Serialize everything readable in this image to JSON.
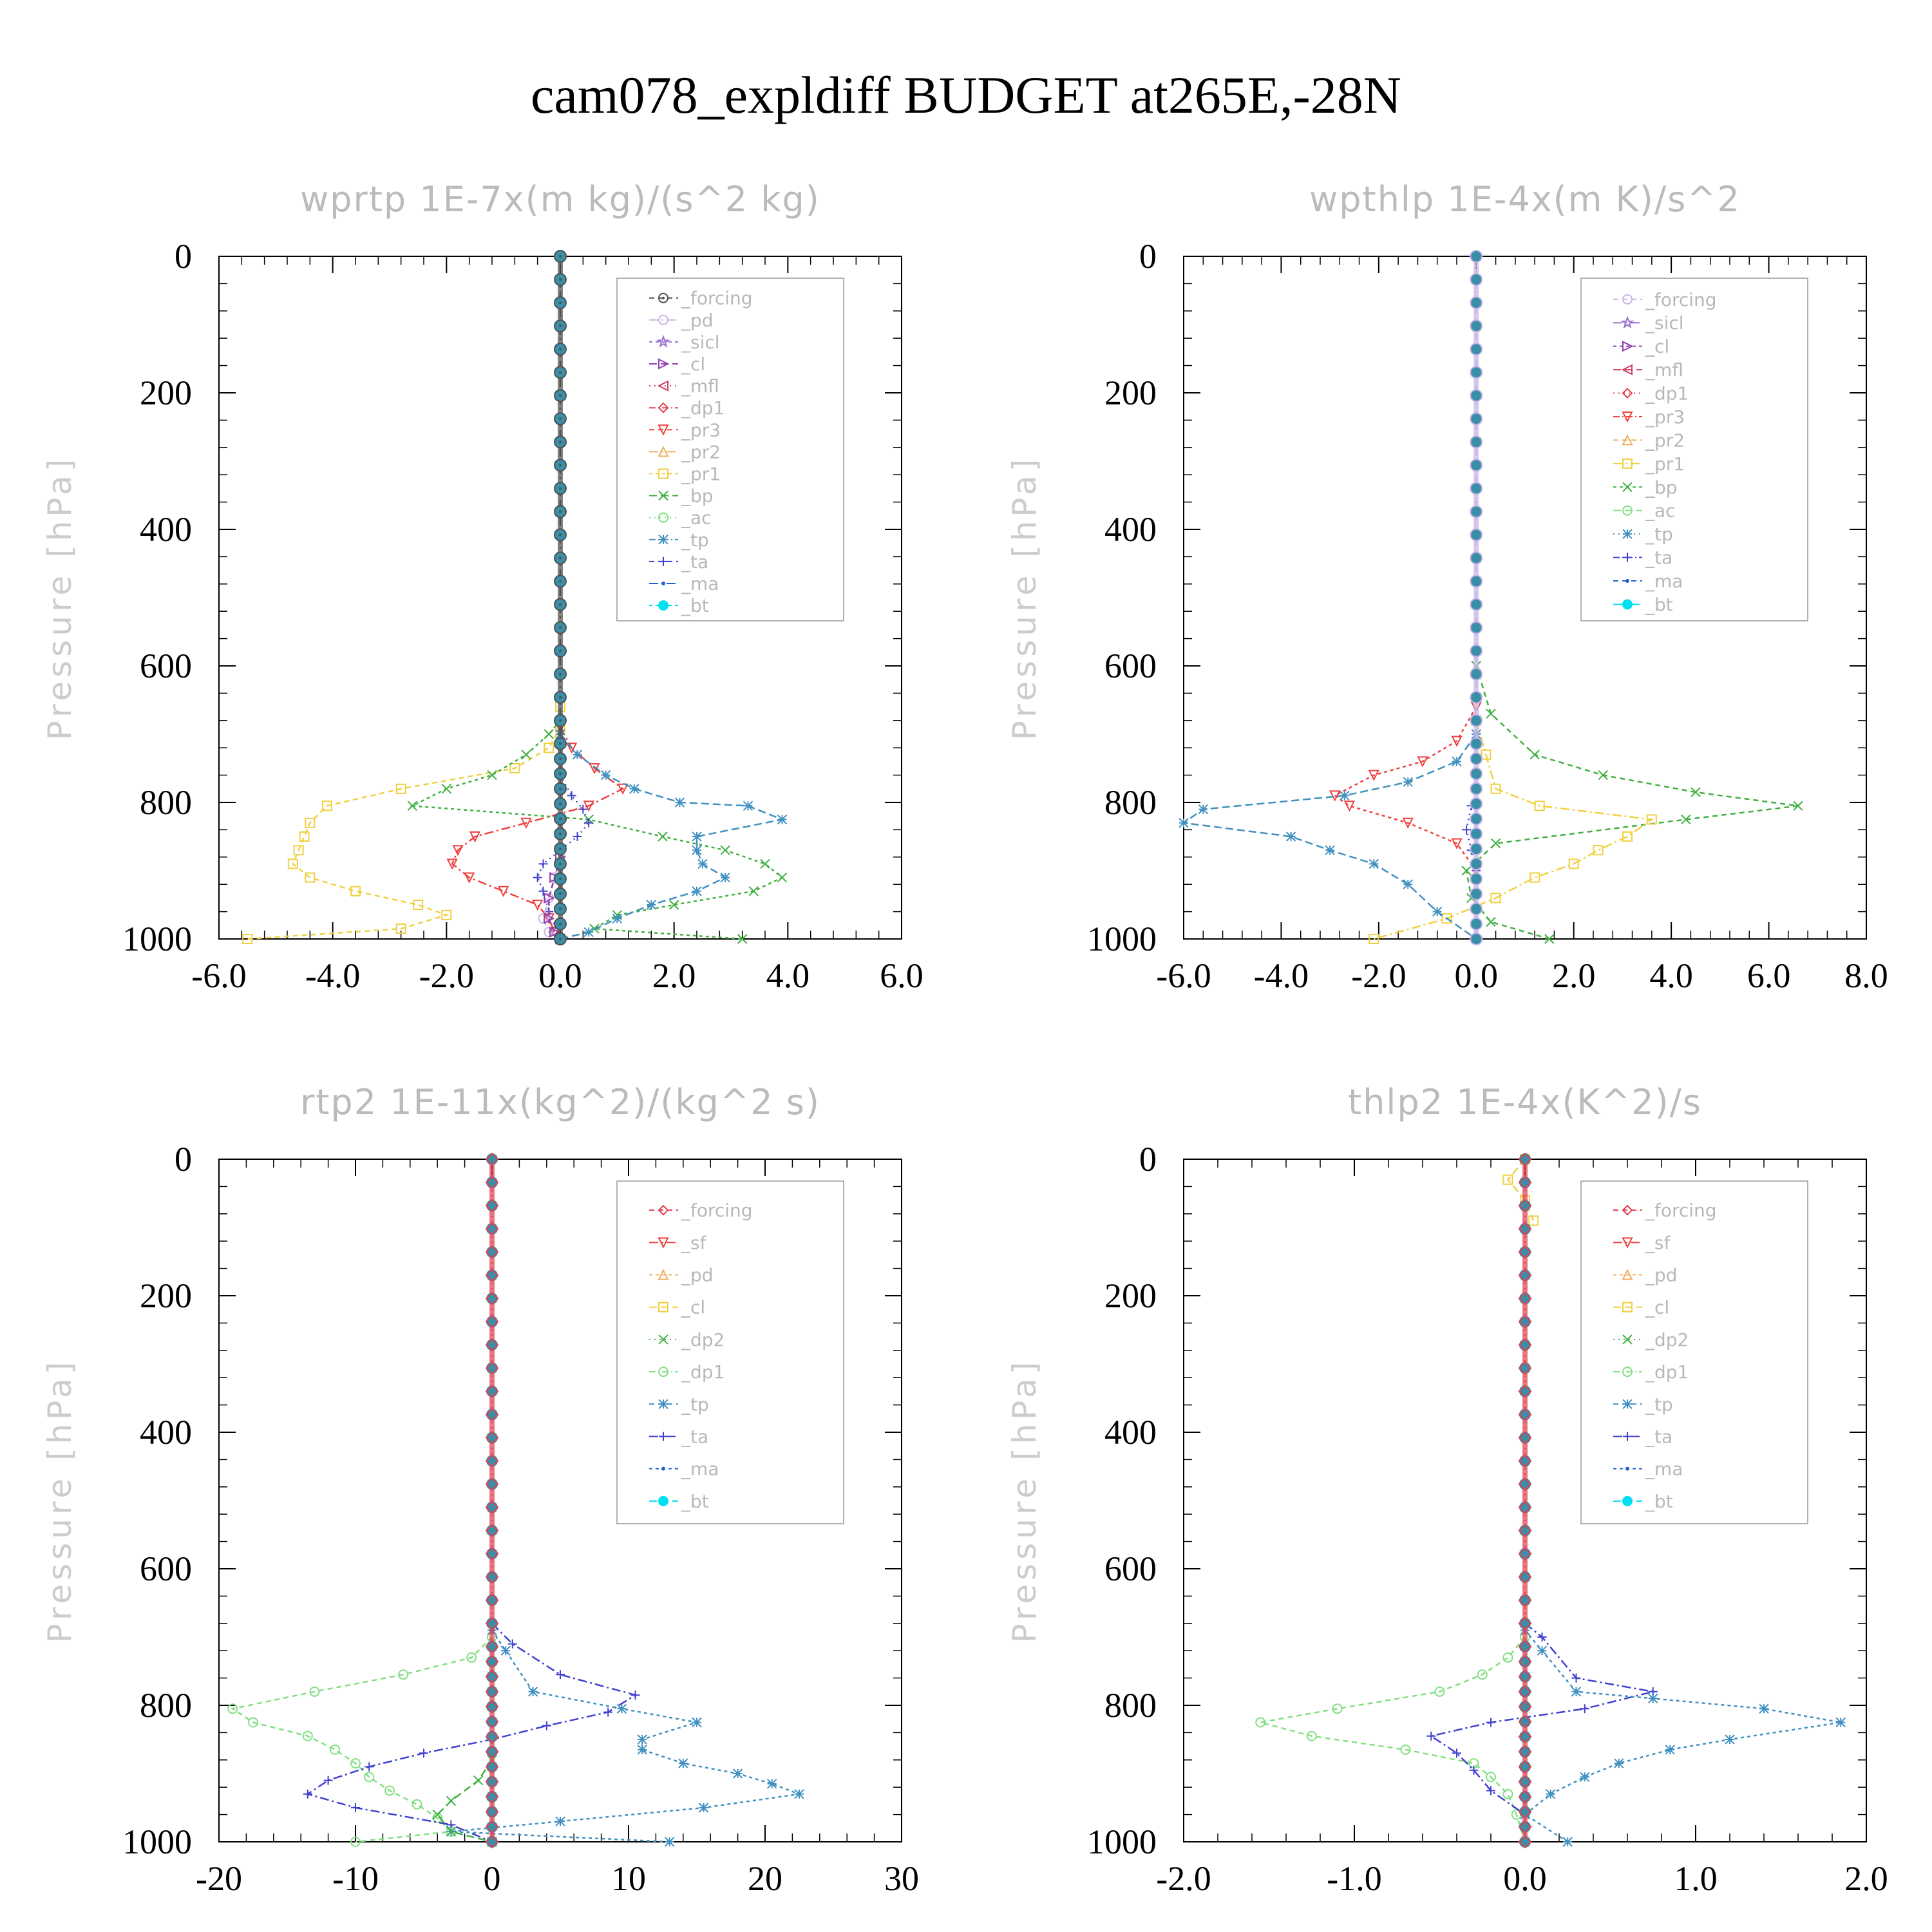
{
  "title": "cam078_expldiff  BUDGET at265E,-28N",
  "colors": {
    "forcing_dark": "#505050",
    "pd": "#c8b4e6",
    "sicl": "#9a6fd0",
    "cl_purple": "#9040b0",
    "mfl": "#d04060",
    "dp1_red": "#e04050",
    "pr3": "#f04040",
    "pr2": "#f0b060",
    "pr1": "#f0d040",
    "bp": "#40b040",
    "ac": "#80e080",
    "tp": "#4090c0",
    "ta": "#4040d0",
    "ma": "#2060d0",
    "bt": "#00e0f0"
  },
  "chart_data": [
    {
      "type": "line",
      "title": "wprtp  1E-7x(m kg)/(s^2 kg)",
      "ylabel": "Pressure [hPa]",
      "xlim": [
        -6,
        6
      ],
      "ylim": [
        1000,
        0
      ],
      "xticks": [
        "-6.0",
        "-4.0",
        "-2.0",
        "0.0",
        "2.0",
        "4.0",
        "6.0"
      ],
      "yticks": [
        "0",
        "200",
        "400",
        "600",
        "800",
        "1000"
      ],
      "legend": [
        "_forcing",
        "_pd",
        "_sicl",
        "_cl",
        "_mfl",
        "_dp1",
        "_pr3",
        "_pr2",
        "_pr1",
        "_bp",
        "_ac",
        "_tp",
        "_ta",
        "_ma",
        "_bt"
      ],
      "legend_markers": [
        "circle-dot",
        "circle",
        "star",
        "tri-right",
        "tri-left",
        "diamond",
        "tri-down",
        "tri-up",
        "square",
        "x",
        "circle",
        "asterisk",
        "plus",
        "dot",
        "filled-circle"
      ],
      "legend_colors": [
        "#505050",
        "#c8b4e6",
        "#9a6fd0",
        "#9040b0",
        "#d04060",
        "#e04050",
        "#f04040",
        "#f0b060",
        "#f0d040",
        "#40b040",
        "#80e080",
        "#4090c0",
        "#4040d0",
        "#2060d0",
        "#00e0f0"
      ],
      "series": [
        {
          "color": "#f0d040",
          "marker": "square",
          "x": [
            0,
            0,
            -0.2,
            -0.8,
            -2.8,
            -4.1,
            -4.4,
            -4.5,
            -4.6,
            -4.7,
            -4.4,
            -3.6,
            -2.5,
            -2.0,
            -2.8,
            -5.5
          ],
          "y": [
            660,
            690,
            720,
            750,
            780,
            805,
            830,
            850,
            870,
            890,
            910,
            930,
            950,
            965,
            985,
            1000
          ]
        },
        {
          "color": "#f04040",
          "marker": "tri-down",
          "x": [
            0,
            0.2,
            0.6,
            1.1,
            0.5,
            -0.6,
            -1.5,
            -1.8,
            -1.9,
            -1.6,
            -1.0,
            -0.4,
            -0.2,
            -0.1,
            0
          ],
          "y": [
            690,
            720,
            750,
            780,
            805,
            830,
            850,
            870,
            890,
            910,
            930,
            950,
            970,
            990,
            1000
          ]
        },
        {
          "color": "#40b040",
          "marker": "x",
          "x": [
            0,
            -0.2,
            -0.6,
            -1.2,
            -2.0,
            -2.6,
            0.5,
            1.8,
            2.9,
            3.6,
            3.9,
            3.4,
            2.0,
            1.0,
            0.6,
            3.2
          ],
          "y": [
            680,
            700,
            730,
            760,
            780,
            805,
            825,
            850,
            870,
            890,
            910,
            930,
            950,
            965,
            985,
            1000
          ]
        },
        {
          "color": "#4090c0",
          "marker": "asterisk",
          "x": [
            0,
            0.3,
            0.8,
            1.3,
            2.1,
            3.3,
            3.9,
            2.4,
            2.4,
            2.5,
            2.9,
            2.4,
            1.6,
            1.0,
            0.5,
            0
          ],
          "y": [
            700,
            730,
            760,
            780,
            800,
            805,
            825,
            850,
            870,
            890,
            910,
            930,
            950,
            970,
            990,
            1000
          ]
        },
        {
          "color": "#4040d0",
          "marker": "plus",
          "x": [
            0,
            0.2,
            0.4,
            0.5,
            0.3,
            0,
            -0.3,
            -0.4,
            -0.3,
            -0.2,
            0
          ],
          "y": [
            760,
            790,
            810,
            830,
            850,
            870,
            890,
            910,
            930,
            960,
            1000
          ]
        },
        {
          "color": "#c8b4e6",
          "marker": "circle",
          "x": [
            0,
            -0.1,
            -0.2,
            -0.3,
            -0.2,
            0
          ],
          "y": [
            880,
            910,
            940,
            970,
            990,
            1000
          ]
        },
        {
          "color": "#9040b0",
          "marker": "tri-right",
          "x": [
            0,
            -0.1,
            -0.2,
            -0.2,
            -0.1,
            0
          ],
          "y": [
            880,
            910,
            940,
            970,
            990,
            1000
          ]
        },
        {
          "color": "#505050",
          "marker": "circle-dot",
          "x": [
            0,
            0
          ],
          "y": [
            0,
            1000
          ]
        }
      ]
    },
    {
      "type": "line",
      "title": "wpthlp  1E-4x(m K)/s^2",
      "ylabel": "Pressure [hPa]",
      "xlim": [
        -6,
        8
      ],
      "ylim": [
        1000,
        0
      ],
      "xticks": [
        "-6.0",
        "-4.0",
        "-2.0",
        "0.0",
        "2.0",
        "4.0",
        "6.0",
        "8.0"
      ],
      "yticks": [
        "0",
        "200",
        "400",
        "600",
        "800",
        "1000"
      ],
      "legend": [
        "_forcing",
        "_sicl",
        "_cl",
        "_mfl",
        "_dp1",
        "_pr3",
        "_pr2",
        "_pr1",
        "_bp",
        "_ac",
        "_tp",
        "_ta",
        "_ma",
        "_bt"
      ],
      "legend_markers": [
        "circle",
        "star",
        "tri-right",
        "tri-left",
        "diamond",
        "tri-down",
        "tri-up",
        "square",
        "x",
        "circle",
        "asterisk",
        "plus",
        "dot",
        "filled-circle"
      ],
      "legend_colors": [
        "#c8b4e6",
        "#9a6fd0",
        "#9040b0",
        "#d04060",
        "#e04050",
        "#f04040",
        "#f0b060",
        "#f0d040",
        "#40b040",
        "#80e080",
        "#4090c0",
        "#4040d0",
        "#2060d0",
        "#00e0f0"
      ],
      "series": [
        {
          "color": "#40b040",
          "marker": "x",
          "x": [
            0,
            0.3,
            1.2,
            2.6,
            4.5,
            6.6,
            4.3,
            0.4,
            -0.2,
            -0.1,
            0.3,
            1.5
          ],
          "y": [
            600,
            670,
            730,
            760,
            785,
            805,
            825,
            860,
            900,
            940,
            975,
            1000
          ]
        },
        {
          "color": "#f0d040",
          "marker": "square",
          "x": [
            0,
            0.2,
            0.4,
            1.3,
            3.6,
            3.1,
            2.5,
            2.0,
            1.2,
            0.4,
            -0.6,
            -2.1
          ],
          "y": [
            680,
            730,
            780,
            805,
            825,
            850,
            870,
            890,
            910,
            940,
            970,
            1000
          ]
        },
        {
          "color": "#f04040",
          "marker": "tri-down",
          "x": [
            0,
            -0.4,
            -1.1,
            -2.1,
            -2.9,
            -2.6,
            -1.4,
            -0.4,
            0
          ],
          "y": [
            660,
            710,
            740,
            760,
            790,
            805,
            830,
            860,
            900
          ]
        },
        {
          "color": "#4090c0",
          "marker": "asterisk",
          "x": [
            0,
            -0.4,
            -1.4,
            -2.7,
            -5.6,
            -6.0,
            -3.8,
            -3.0,
            -2.1,
            -1.4,
            -0.8,
            0
          ],
          "y": [
            700,
            740,
            770,
            790,
            810,
            830,
            850,
            870,
            890,
            920,
            960,
            1000
          ]
        },
        {
          "color": "#4040d0",
          "marker": "plus",
          "x": [
            0,
            -0.1,
            -0.2,
            -0.1,
            0
          ],
          "y": [
            780,
            805,
            840,
            870,
            900
          ]
        },
        {
          "color": "#c8b4e6",
          "marker": "circle",
          "x": [
            0,
            0
          ],
          "y": [
            0,
            1000
          ]
        }
      ]
    },
    {
      "type": "line",
      "title": "rtp2  1E-11x(kg^2)/(kg^2 s)",
      "ylabel": "Pressure [hPa]",
      "xlim": [
        -20,
        30
      ],
      "ylim": [
        1000,
        0
      ],
      "xticks": [
        "-20",
        "-10",
        "0",
        "10",
        "20",
        "30"
      ],
      "yticks": [
        "0",
        "200",
        "400",
        "600",
        "800",
        "1000"
      ],
      "legend": [
        "_forcing",
        "_sf",
        "_pd",
        "_cl",
        "_dp2",
        "_dp1",
        "_tp",
        "_ta",
        "_ma",
        "_bt"
      ],
      "legend_markers": [
        "diamond",
        "tri-down",
        "tri-up",
        "square",
        "x",
        "circle",
        "asterisk",
        "plus",
        "dot",
        "filled-circle"
      ],
      "legend_colors": [
        "#e04050",
        "#f04040",
        "#f0b060",
        "#f0d040",
        "#40b040",
        "#80e080",
        "#4090c0",
        "#4040d0",
        "#2060d0",
        "#00e0f0"
      ],
      "series": [
        {
          "color": "#80e080",
          "marker": "circle",
          "x": [
            0,
            -1.5,
            -6.5,
            -13,
            -19,
            -17.5,
            -13.5,
            -11.5,
            -10,
            -9,
            -7.5,
            -5.5,
            -4,
            -3,
            -10
          ],
          "y": [
            700,
            730,
            755,
            780,
            805,
            825,
            845,
            865,
            885,
            905,
            925,
            945,
            965,
            985,
            1000
          ]
        },
        {
          "color": "#4040d0",
          "marker": "plus",
          "x": [
            0,
            1.5,
            5,
            10.5,
            8.5,
            4,
            0,
            -5,
            -9,
            -12,
            -13.5,
            -10,
            -3,
            0
          ],
          "y": [
            680,
            710,
            755,
            785,
            810,
            830,
            850,
            870,
            890,
            910,
            930,
            950,
            975,
            1000
          ]
        },
        {
          "color": "#4090c0",
          "marker": "asterisk",
          "x": [
            0,
            1,
            3,
            9.5,
            15,
            11,
            11,
            14,
            18,
            20.5,
            22.5,
            15.5,
            5,
            -3,
            13
          ],
          "y": [
            690,
            720,
            780,
            805,
            825,
            850,
            865,
            885,
            900,
            915,
            930,
            950,
            970,
            985,
            1000
          ]
        },
        {
          "color": "#40b040",
          "marker": "x",
          "x": [
            0,
            -1,
            -3,
            -4,
            -3,
            0
          ],
          "y": [
            880,
            910,
            940,
            960,
            985,
            1000
          ]
        },
        {
          "color": "#e04050",
          "marker": "diamond",
          "x": [
            0,
            0
          ],
          "y": [
            0,
            1000
          ]
        }
      ]
    },
    {
      "type": "line",
      "title": "thlp2  1E-4x(K^2)/s",
      "ylabel": "Pressure [hPa]",
      "xlim": [
        -2,
        2
      ],
      "ylim": [
        1000,
        0
      ],
      "xticks": [
        "-2.0",
        "-1.0",
        "0.0",
        "1.0",
        "2.0"
      ],
      "yticks": [
        "0",
        "200",
        "400",
        "600",
        "800",
        "1000"
      ],
      "legend": [
        "_forcing",
        "_sf",
        "_pd",
        "_cl",
        "_dp2",
        "_dp1",
        "_tp",
        "_ta",
        "_ma",
        "_bt"
      ],
      "legend_markers": [
        "diamond",
        "tri-down",
        "tri-up",
        "square",
        "x",
        "circle",
        "asterisk",
        "plus",
        "dot",
        "filled-circle"
      ],
      "legend_colors": [
        "#e04050",
        "#f04040",
        "#f0b060",
        "#f0d040",
        "#40b040",
        "#80e080",
        "#4090c0",
        "#4040d0",
        "#2060d0",
        "#00e0f0"
      ],
      "series": [
        {
          "color": "#80e080",
          "marker": "circle",
          "x": [
            0,
            -0.1,
            -0.25,
            -0.5,
            -1.1,
            -1.55,
            -1.25,
            -0.7,
            -0.3,
            -0.2,
            -0.1,
            -0.05,
            0
          ],
          "y": [
            700,
            730,
            755,
            780,
            805,
            825,
            845,
            865,
            885,
            905,
            930,
            960,
            1000
          ]
        },
        {
          "color": "#4040d0",
          "marker": "plus",
          "x": [
            0,
            0.1,
            0.3,
            0.75,
            0.35,
            -0.2,
            -0.55,
            -0.4,
            -0.3,
            -0.2,
            0
          ],
          "y": [
            680,
            700,
            760,
            780,
            805,
            825,
            845,
            870,
            895,
            925,
            960
          ]
        },
        {
          "color": "#4090c0",
          "marker": "asterisk",
          "x": [
            0,
            0.1,
            0.3,
            0.75,
            1.4,
            1.85,
            1.2,
            0.85,
            0.55,
            0.35,
            0.15,
            0,
            0.25
          ],
          "y": [
            690,
            720,
            780,
            790,
            805,
            825,
            850,
            865,
            885,
            905,
            930,
            960,
            1000
          ]
        },
        {
          "color": "#f0d040",
          "marker": "square",
          "x": [
            0,
            -0.1,
            0,
            0.05
          ],
          "y": [
            0,
            30,
            60,
            90
          ]
        },
        {
          "color": "#e04050",
          "marker": "diamond",
          "x": [
            0,
            0
          ],
          "y": [
            0,
            1000
          ]
        }
      ]
    }
  ]
}
